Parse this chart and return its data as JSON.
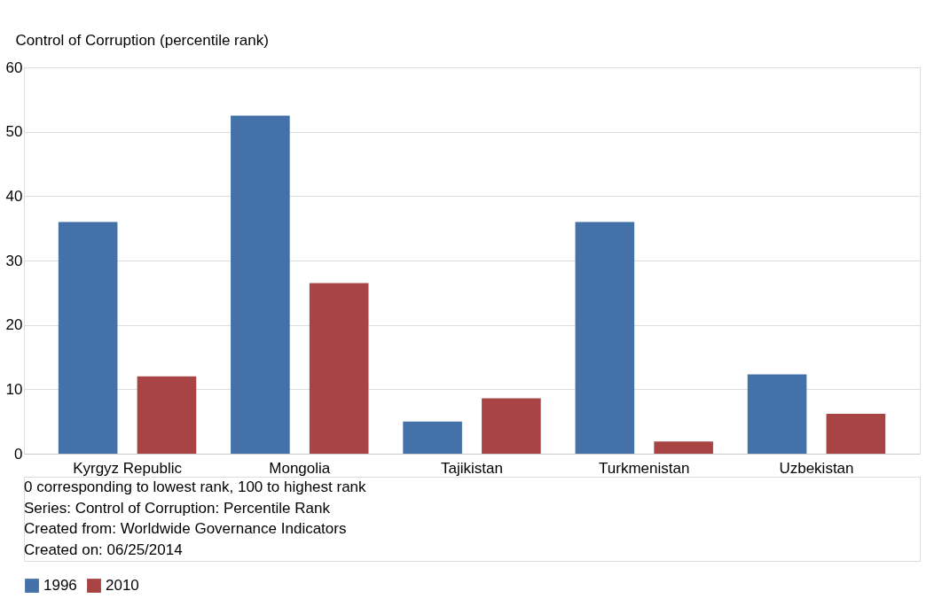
{
  "chart_data": {
    "type": "bar",
    "ylabel": "Control of Corruption (percentile rank)",
    "categories": [
      "Kyrgyz Republic",
      "Mongolia",
      "Tajikistan",
      "Turkmenistan",
      "Uzbekistan"
    ],
    "series": [
      {
        "name": "1996",
        "color": "#4472a8",
        "values": [
          36.0,
          52.5,
          5.0,
          36.0,
          12.3
        ]
      },
      {
        "name": "2010",
        "color": "#a84444",
        "values": [
          12.0,
          26.5,
          8.6,
          1.9,
          6.2
        ]
      }
    ],
    "ylim": [
      0,
      60
    ],
    "yticks": [
      0,
      10,
      20,
      30,
      40,
      50,
      60
    ],
    "grid": "y",
    "legend": "bottom",
    "annotations": [
      "0 corresponding to lowest rank, 100 to highest rank",
      "Series: Control of Corruption: Percentile Rank",
      "Created from: Worldwide Governance Indicators",
      "Created on: 06/25/2014"
    ]
  }
}
